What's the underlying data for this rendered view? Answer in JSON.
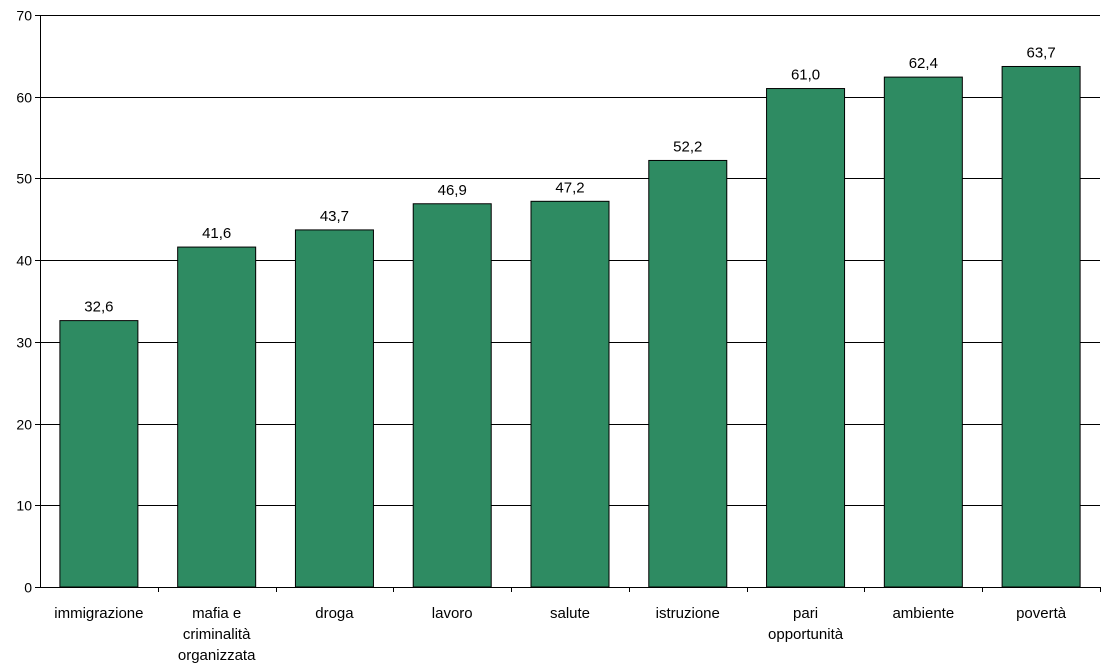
{
  "chart_data": {
    "type": "bar",
    "categories": [
      [
        "immigrazione"
      ],
      [
        "mafia e",
        "criminalità",
        "organizzata"
      ],
      [
        "droga"
      ],
      [
        "lavoro"
      ],
      [
        "salute"
      ],
      [
        "istruzione"
      ],
      [
        "pari",
        "opportunità"
      ],
      [
        "ambiente"
      ],
      [
        "povertà"
      ]
    ],
    "values": [
      32.6,
      41.6,
      43.7,
      46.9,
      47.2,
      52.2,
      61.0,
      62.4,
      63.7
    ],
    "value_labels": [
      "32,6",
      "41,6",
      "43,7",
      "46,9",
      "47,2",
      "52,2",
      "61,0",
      "62,4",
      "63,7"
    ],
    "y_ticks": [
      "0",
      "10",
      "20",
      "30",
      "40",
      "50",
      "60",
      "70"
    ],
    "ylim": [
      0,
      70
    ],
    "title": "",
    "xlabel": "",
    "ylabel": "",
    "grid": true,
    "legend": "none",
    "colors": {
      "bar": "#2E8B62",
      "bar_stroke": "#000000",
      "grid": "#000000"
    }
  }
}
